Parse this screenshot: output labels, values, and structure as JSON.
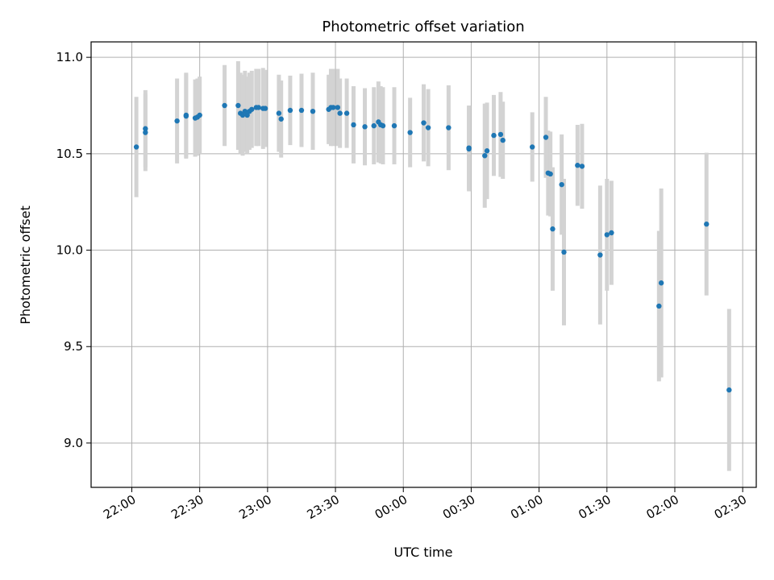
{
  "chart_data": {
    "type": "scatter",
    "title": "Photometric offset variation",
    "xlabel": "UTC time",
    "ylabel": "Photometric offset",
    "grid": true,
    "xlim": [
      "21:42",
      "02:36"
    ],
    "ylim": [
      8.77,
      11.08
    ],
    "x_ticks": [
      "22:00",
      "22:30",
      "23:00",
      "23:30",
      "00:00",
      "00:30",
      "01:00",
      "01:30",
      "02:00",
      "02:30"
    ],
    "y_ticks": [
      "9.0",
      "9.5",
      "10.0",
      "10.5",
      "11.0"
    ],
    "point_color": "#1f77b4",
    "errorbar_color": "#d3d3d3",
    "series": [
      {
        "x": [
          "22:02",
          "22:06",
          "22:06",
          "22:20",
          "22:24",
          "22:24",
          "22:28",
          "22:29",
          "22:30",
          "22:41",
          "22:47",
          "22:48",
          "22:49",
          "22:50",
          "22:51",
          "22:52",
          "22:53",
          "22:55",
          "22:56",
          "22:58",
          "22:59",
          "23:05",
          "23:06",
          "23:10",
          "23:15",
          "23:20",
          "23:27",
          "23:28",
          "23:29",
          "23:31",
          "23:32",
          "23:35",
          "23:38",
          "23:43",
          "23:47",
          "23:49",
          "23:50",
          "23:51",
          "23:56",
          "00:03",
          "00:09",
          "00:11",
          "00:20",
          "00:29",
          "00:29",
          "00:36",
          "00:37",
          "00:40",
          "00:43",
          "00:44",
          "00:57",
          "01:03",
          "01:04",
          "01:05",
          "01:06",
          "01:10",
          "01:11",
          "01:17",
          "01:19",
          "01:27",
          "01:30",
          "01:32",
          "01:53",
          "01:54",
          "02:14",
          "02:24"
        ],
        "y": [
          10.535,
          10.63,
          10.61,
          10.67,
          10.7,
          10.695,
          10.685,
          10.69,
          10.7,
          10.75,
          10.75,
          10.71,
          10.7,
          10.72,
          10.7,
          10.72,
          10.73,
          10.74,
          10.74,
          10.735,
          10.735,
          10.71,
          10.68,
          10.725,
          10.725,
          10.72,
          10.73,
          10.74,
          10.74,
          10.74,
          10.71,
          10.71,
          10.65,
          10.64,
          10.645,
          10.665,
          10.65,
          10.645,
          10.645,
          10.61,
          10.66,
          10.635,
          10.635,
          10.53,
          10.525,
          10.49,
          10.515,
          10.595,
          10.6,
          10.57,
          10.535,
          10.585,
          10.4,
          10.395,
          10.11,
          10.34,
          9.99,
          10.44,
          10.435,
          9.975,
          10.08,
          10.09,
          9.71,
          9.83,
          10.135,
          9.275
        ],
        "error": [
          0.26,
          0.2,
          0.2,
          0.22,
          0.22,
          0.22,
          0.2,
          0.2,
          0.2,
          0.21,
          0.23,
          0.21,
          0.21,
          0.21,
          0.2,
          0.2,
          0.2,
          0.2,
          0.2,
          0.21,
          0.2,
          0.2,
          0.2,
          0.18,
          0.19,
          0.2,
          0.18,
          0.2,
          0.2,
          0.2,
          0.18,
          0.18,
          0.2,
          0.2,
          0.2,
          0.21,
          0.2,
          0.2,
          0.2,
          0.18,
          0.2,
          0.2,
          0.22,
          0.22,
          0.22,
          0.27,
          0.25,
          0.21,
          0.22,
          0.2,
          0.18,
          0.21,
          0.22,
          0.22,
          0.32,
          0.26,
          0.38,
          0.21,
          0.22,
          0.36,
          0.29,
          0.27,
          0.39,
          0.49,
          0.37,
          0.42
        ]
      }
    ]
  }
}
